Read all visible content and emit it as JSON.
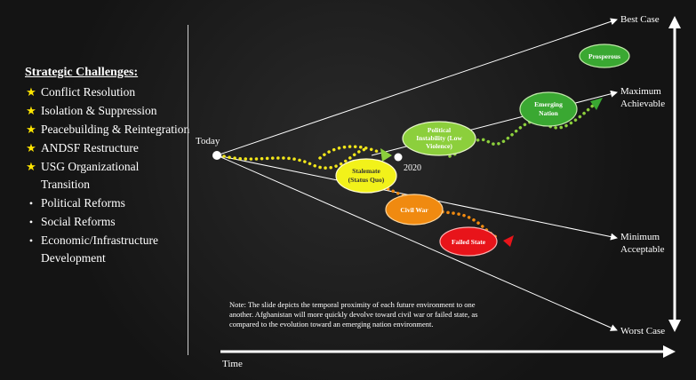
{
  "sidebar": {
    "title": "Strategic Challenges:",
    "items": [
      {
        "label": "Conflict Resolution",
        "type": "star"
      },
      {
        "label": "Isolation & Suppression",
        "type": "star"
      },
      {
        "label": "Peacebuilding & Reintegration",
        "type": "star"
      },
      {
        "label": "ANDSF Restructure",
        "type": "star"
      },
      {
        "label": "USG Organizational Transition",
        "type": "star"
      },
      {
        "label": "Political Reforms",
        "type": "dot"
      },
      {
        "label": "Social Reforms",
        "type": "dot"
      },
      {
        "label": "Economic/Infrastructure Development",
        "type": "dot"
      }
    ]
  },
  "diagram": {
    "start_label": "Today",
    "year_label": "2020",
    "outcomes": {
      "best": "Best Case",
      "max_line1": "Maximum",
      "max_line2": "Achievable",
      "min_line1": "Minimum",
      "min_line2": "Acceptable",
      "worst": "Worst Case"
    },
    "nodes": {
      "prosperous": "Prosperous",
      "emerging_line1": "Emerging",
      "emerging_line2": "Nation",
      "political_line1": "Political",
      "political_line2": "Instability (Low",
      "political_line3": "Violence)",
      "stalemate_line1": "Stalemate",
      "stalemate_line2": "(Status Quo)",
      "civil_war": "Civil War",
      "failed_state": "Failed State"
    },
    "colors": {
      "green": "#3aa832",
      "light_green": "#8ccf3c",
      "yellow": "#f2f21a",
      "orange": "#f08a10",
      "red": "#e8141a"
    }
  },
  "note": "Note: The slide depicts the temporal proximity of each future environment to one another.  Afghanistan will more quickly devolve toward civil war or failed state, as compared to the evolution toward an emerging nation environment.",
  "time_label": "Time"
}
